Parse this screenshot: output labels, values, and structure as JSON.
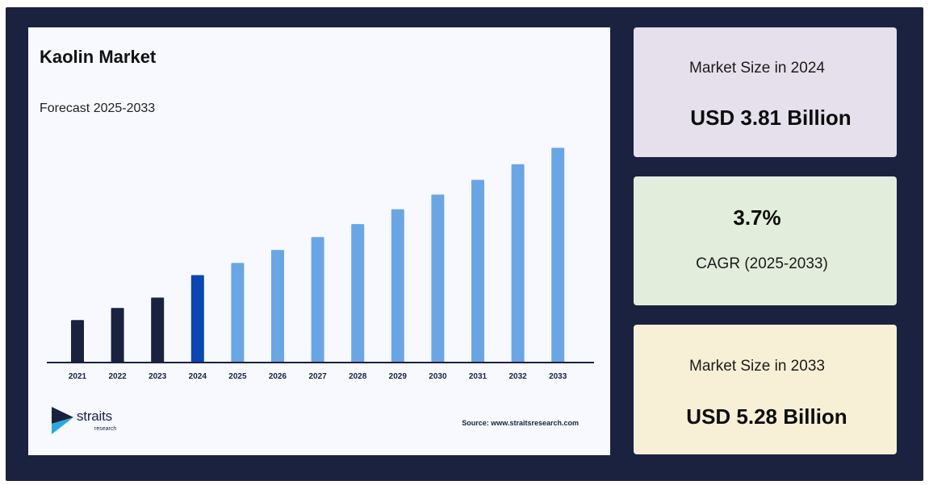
{
  "chart_data": {
    "type": "bar",
    "title": "Kaolin Market",
    "subtitle": "Forecast 2025-2033",
    "categories": [
      "2021",
      "2022",
      "2023",
      "2024",
      "2025",
      "2026",
      "2027",
      "2028",
      "2029",
      "2030",
      "2031",
      "2032",
      "2033"
    ],
    "values": [
      3.29,
      3.43,
      3.55,
      3.81,
      3.95,
      4.1,
      4.25,
      4.4,
      4.57,
      4.74,
      4.91,
      5.09,
      5.28
    ],
    "ylim": [
      2.8,
      5.35
    ],
    "xlabel": "",
    "ylabel": "",
    "grid": false,
    "colors": {
      "historical": "#1a2240",
      "base_year": "#0a47b0",
      "forecast": "#6aa6e4",
      "axis": "#1a2240"
    },
    "bar_color_groups": [
      "historical",
      "historical",
      "historical",
      "base_year",
      "forecast",
      "forecast",
      "forecast",
      "forecast",
      "forecast",
      "forecast",
      "forecast",
      "forecast",
      "forecast"
    ]
  },
  "logo": {
    "name": "straits",
    "sub": "research"
  },
  "source": "Source: www.straitsresearch.com",
  "cards": [
    {
      "label": "Market Size in 2024",
      "value": "USD 3.81 Billion",
      "background": "#e6e0ec"
    },
    {
      "label": "CAGR (2025-2033)",
      "value": "3.7%",
      "background": "#e2eddc"
    },
    {
      "label": "Market Size in 2033",
      "value": "USD 5.28 Billion",
      "background": "#f7f0d6"
    }
  ],
  "colors": {
    "frame": "#1a2240",
    "panel": "#f7f9ff"
  }
}
